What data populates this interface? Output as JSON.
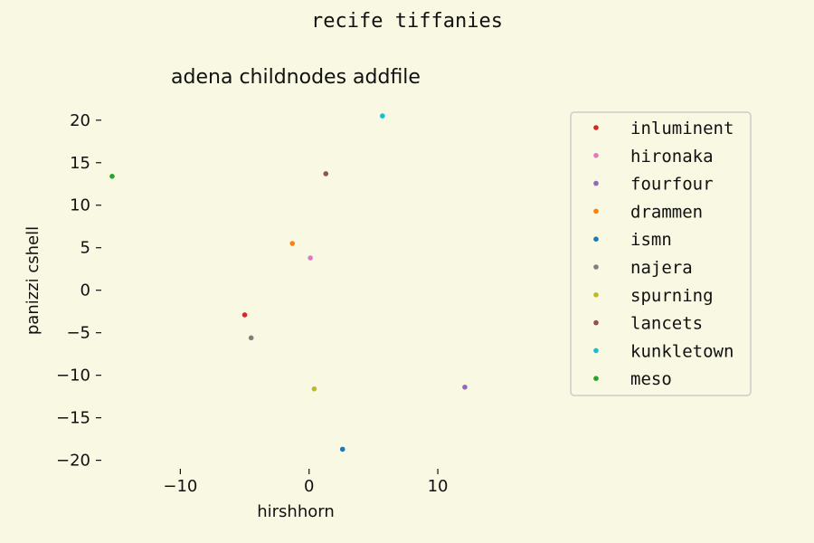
{
  "figure": {
    "suptitle": "recife tiffanies",
    "background": "#f9f8e2"
  },
  "chart_data": {
    "type": "scatter",
    "title": "adena childnodes addfile",
    "xlabel": "hirshhorn",
    "ylabel": "panizzi cshell",
    "xlim": [
      -16,
      14
    ],
    "ylim": [
      -21,
      22
    ],
    "xticks": [
      -10,
      0,
      10
    ],
    "xtick_labels": [
      "−10",
      "0",
      "10"
    ],
    "yticks": [
      20,
      15,
      10,
      5,
      0,
      -5,
      -10,
      -15,
      -20
    ],
    "ytick_labels": [
      "20",
      "15",
      "10",
      "5",
      "0",
      "−5",
      "−10",
      "−15",
      "−20"
    ],
    "grid": false,
    "legend_position": "top-right",
    "series": [
      {
        "name": "inluminent",
        "color": "#d62728",
        "x": -5.0,
        "y": -2.9
      },
      {
        "name": "hironaka",
        "color": "#e377c2",
        "x": 0.1,
        "y": 3.8
      },
      {
        "name": "fourfour",
        "color": "#9467bd",
        "x": 12.1,
        "y": -11.4
      },
      {
        "name": "drammen",
        "color": "#ff7f0e",
        "x": -1.3,
        "y": 5.5
      },
      {
        "name": "ismn",
        "color": "#1f77b4",
        "x": 2.6,
        "y": -18.7
      },
      {
        "name": "najera",
        "color": "#7f7f7f",
        "x": -4.5,
        "y": -5.6
      },
      {
        "name": "spurning",
        "color": "#bcbd22",
        "x": 0.4,
        "y": -11.6
      },
      {
        "name": "lancets",
        "color": "#8c564b",
        "x": 1.3,
        "y": 13.7
      },
      {
        "name": "kunkletown",
        "color": "#17becf",
        "x": 5.7,
        "y": 20.5
      },
      {
        "name": "meso",
        "color": "#2ca02c",
        "x": -15.3,
        "y": 13.4
      }
    ]
  }
}
